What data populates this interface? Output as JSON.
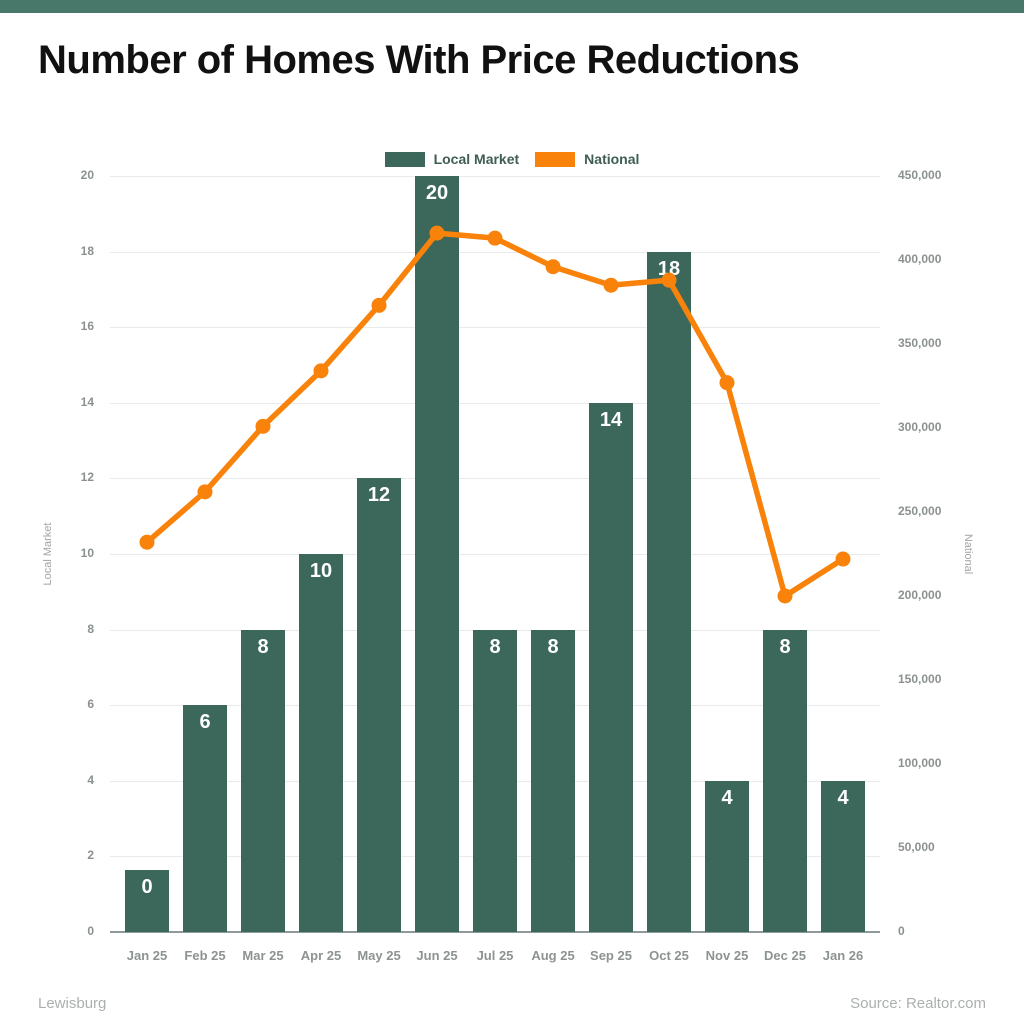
{
  "title": "Number of Homes With Price Reductions",
  "footer": {
    "left": "Lewisburg",
    "source": "Source: Realtor.com"
  },
  "colors": {
    "top_band": "#47786A",
    "bar": "#3C685C",
    "line": "#F8820A",
    "bar_label": "#FFFFFF"
  },
  "legend": {
    "position": "top-center",
    "items": [
      {
        "label": "Local Market",
        "color": "#3C685C"
      },
      {
        "label": "National",
        "color": "#F8820A"
      }
    ]
  },
  "chart_data": {
    "type": "bar",
    "title": "Number of Homes With Price Reductions",
    "categories": [
      "Jan 25",
      "Feb 25",
      "Mar 25",
      "Apr 25",
      "May 25",
      "Jun 25",
      "Jul 25",
      "Aug 25",
      "Sep 25",
      "Oct 25",
      "Nov 25",
      "Dec 25",
      "Jan 26"
    ],
    "series": [
      {
        "name": "Local Market",
        "type": "bar",
        "axis": "left",
        "values": [
          0,
          6,
          8,
          10,
          12,
          20,
          8,
          8,
          14,
          18,
          4,
          8,
          4
        ],
        "data_labels": [
          "0",
          "6",
          "8",
          "10",
          "12",
          "20",
          "8",
          "8",
          "14",
          "18",
          "4",
          "8",
          "4"
        ]
      },
      {
        "name": "National",
        "type": "line",
        "axis": "right",
        "values": [
          232000,
          262000,
          301000,
          334000,
          373000,
          416000,
          413000,
          396000,
          385000,
          388000,
          327000,
          200000,
          222000
        ]
      }
    ],
    "left_axis": {
      "label": "Local Market",
      "min": 0,
      "max": 20,
      "step": 2
    },
    "right_axis": {
      "label": "National",
      "min": 0,
      "max": 450000,
      "step": 50000
    },
    "grid": "horizontal-only",
    "legend_position": "top-center"
  }
}
